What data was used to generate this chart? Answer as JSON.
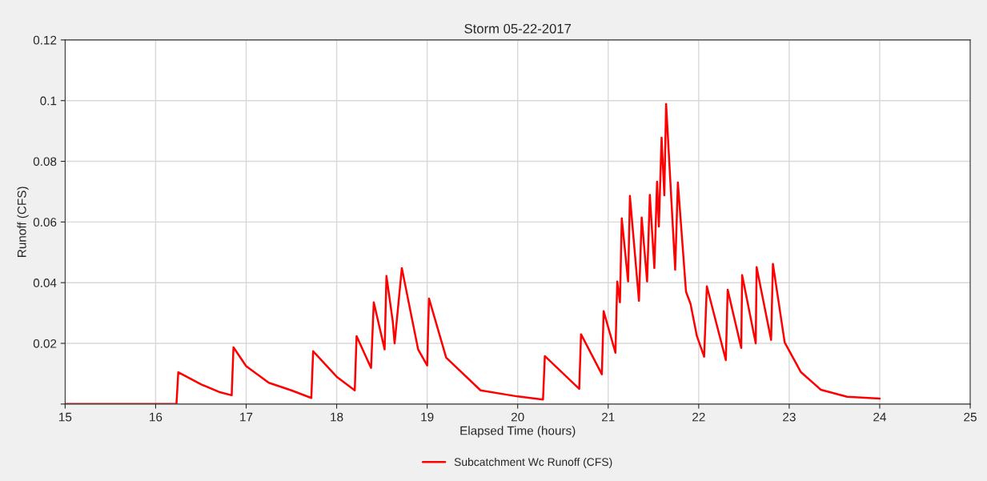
{
  "chart_data": {
    "type": "line",
    "title": "Storm 05-22-2017",
    "xlabel": "Elapsed Time (hours)",
    "ylabel": "Runoff (CFS)",
    "xlim": [
      15,
      25
    ],
    "xticks": [
      15,
      16,
      17,
      18,
      19,
      20,
      21,
      22,
      23,
      24,
      25
    ],
    "ylim": [
      0,
      0.12
    ],
    "yticks": [
      {
        "value": 0,
        "label": null
      },
      0.02,
      0.04,
      0.06,
      0.08,
      {
        "value": 0.1,
        "label": "0.1"
      },
      0.12
    ],
    "grid": true,
    "legend": "bottom",
    "line_style": "solid",
    "marker": "none",
    "series": [
      {
        "name": "Subcatchment Wc Runoff (CFS)",
        "color": "#ff0000",
        "x": [
          15,
          16.23,
          16.25,
          16.5,
          16.7,
          16.84,
          16.86,
          17.0,
          17.25,
          17.5,
          17.72,
          17.74,
          18.0,
          18.2,
          18.22,
          18.38,
          18.41,
          18.53,
          18.55,
          18.62,
          18.64,
          18.72,
          18.9,
          19.0,
          19.02,
          19.21,
          19.59,
          20.0,
          20.28,
          20.3,
          20.68,
          20.7,
          20.93,
          20.95,
          21.08,
          21.1,
          21.13,
          21.15,
          21.22,
          21.24,
          21.34,
          21.37,
          21.43,
          21.46,
          21.51,
          21.54,
          21.56,
          21.59,
          21.62,
          21.64,
          21.74,
          21.77,
          21.86,
          21.91,
          21.98,
          22.06,
          22.09,
          22.3,
          22.32,
          22.47,
          22.48,
          22.63,
          22.64,
          22.8,
          22.82,
          22.95,
          23.13,
          23.35,
          23.64,
          24.0
        ],
        "values": [
          0,
          0,
          0.0105,
          0.0065,
          0.004,
          0.0029,
          0.0187,
          0.0125,
          0.007,
          0.0045,
          0.002,
          0.0174,
          0.009,
          0.0045,
          0.0224,
          0.0119,
          0.0335,
          0.018,
          0.0422,
          0.0272,
          0.02,
          0.0448,
          0.018,
          0.0127,
          0.0348,
          0.0153,
          0.0045,
          0.0025,
          0.0015,
          0.0158,
          0.005,
          0.023,
          0.0098,
          0.0306,
          0.0169,
          0.0404,
          0.0335,
          0.0612,
          0.0404,
          0.0686,
          0.034,
          0.0615,
          0.0404,
          0.0689,
          0.0448,
          0.0733,
          0.0585,
          0.0878,
          0.0688,
          0.0989,
          0.0443,
          0.073,
          0.037,
          0.033,
          0.0224,
          0.0156,
          0.0388,
          0.0145,
          0.0377,
          0.0185,
          0.0425,
          0.02,
          0.0451,
          0.0211,
          0.0462,
          0.0203,
          0.0105,
          0.0047,
          0.0024,
          0.0018
        ]
      }
    ]
  }
}
